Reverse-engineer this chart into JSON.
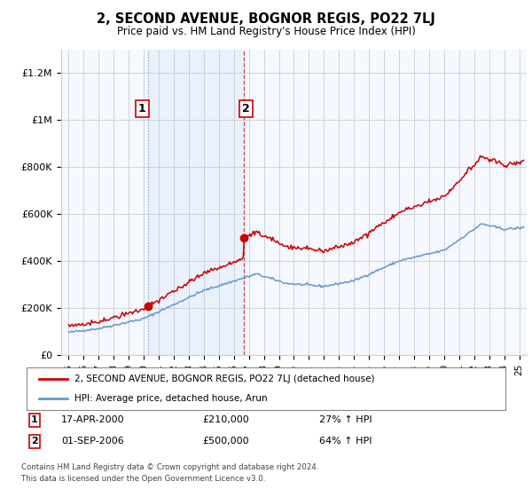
{
  "title": "2, SECOND AVENUE, BOGNOR REGIS, PO22 7LJ",
  "subtitle": "Price paid vs. HM Land Registry's House Price Index (HPI)",
  "hpi_label": "HPI: Average price, detached house, Arun",
  "property_label": "2, SECOND AVENUE, BOGNOR REGIS, PO22 7LJ (detached house)",
  "footnote1": "Contains HM Land Registry data © Crown copyright and database right 2024.",
  "footnote2": "This data is licensed under the Open Government Licence v3.0.",
  "sale1_date": "17-APR-2000",
  "sale1_price": "£210,000",
  "sale1_hpi": "27% ↑ HPI",
  "sale2_date": "01-SEP-2006",
  "sale2_price": "£500,000",
  "sale2_hpi": "64% ↑ HPI",
  "sale1_x": 2000.29,
  "sale1_y": 210000,
  "sale2_x": 2006.67,
  "sale2_y": 500000,
  "property_color": "#cc0000",
  "hpi_color": "#6699cc",
  "background_plot": "#f5f8ff",
  "grid_color": "#cccccc",
  "ylim": [
    0,
    1300000
  ],
  "xlim_start": 1994.5,
  "xlim_end": 2025.5,
  "yticks": [
    0,
    200000,
    400000,
    600000,
    800000,
    1000000,
    1200000
  ],
  "ytick_labels": [
    "£0",
    "£200K",
    "£400K",
    "£600K",
    "£800K",
    "£1M",
    "£1.2M"
  ]
}
